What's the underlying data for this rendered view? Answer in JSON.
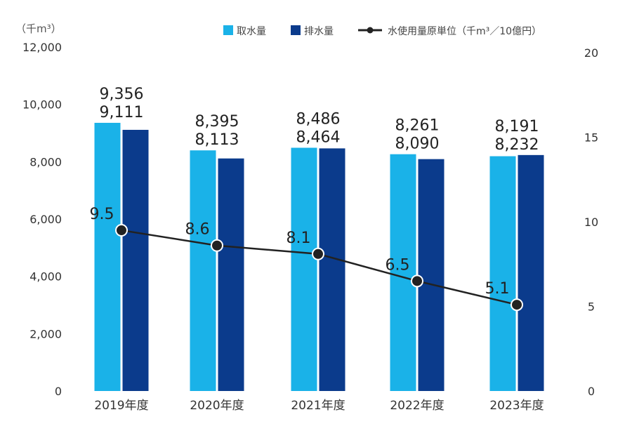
{
  "chart_data": {
    "type": "bar+line",
    "left_axis_unit": "（千m³）",
    "categories": [
      "2019年度",
      "2020年度",
      "2021年度",
      "2022年度",
      "2023年度"
    ],
    "series": [
      {
        "name": "取水量",
        "type": "bar",
        "axis": "left",
        "color": "#1ab2e8",
        "values": [
          9356,
          8395,
          8486,
          8261,
          8191
        ],
        "labels": [
          "9,356",
          "8,395",
          "8,486",
          "8,261",
          "8,191"
        ]
      },
      {
        "name": "排水量",
        "type": "bar",
        "axis": "left",
        "color": "#0b3b8c",
        "values": [
          9111,
          8113,
          8464,
          8090,
          8232
        ],
        "labels": [
          "9,111",
          "8,113",
          "8,464",
          "8,090",
          "8,232"
        ]
      },
      {
        "name": "水使用量原単位（千m³／10億円）",
        "type": "line",
        "axis": "right",
        "color": "#222222",
        "values": [
          9.5,
          8.6,
          8.1,
          6.5,
          5.1
        ],
        "labels": [
          "9.5",
          "8.6",
          "8.1",
          "6.5",
          "5.1"
        ]
      }
    ],
    "left_axis": {
      "ylim": [
        0,
        12000
      ],
      "ticks": [
        "0",
        "2,000",
        "4,000",
        "6,000",
        "8,000",
        "10,000",
        "12,000"
      ]
    },
    "right_axis": {
      "ylim": [
        0,
        20
      ],
      "ticks": [
        "0",
        "5",
        "10",
        "15",
        "20"
      ]
    },
    "grid": false,
    "legend_placement": "top-right"
  }
}
